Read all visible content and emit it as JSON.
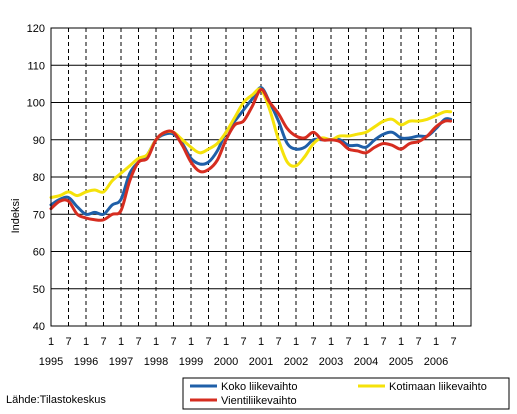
{
  "chart_data": {
    "type": "line",
    "ylabel": "Indeksi",
    "ylim": [
      40,
      120
    ],
    "yticks": [
      40,
      50,
      60,
      70,
      80,
      90,
      100,
      110,
      120
    ],
    "x_start": "1995-01",
    "x_end": "2006-12",
    "month_tick_labels": [
      "1",
      "7"
    ],
    "year_labels": [
      "1995",
      "1996",
      "1997",
      "1998",
      "1999",
      "2000",
      "2001",
      "2002",
      "2003",
      "2004",
      "2005",
      "2006"
    ],
    "grid": {
      "horizontal": "solid",
      "vertical": "dashed"
    },
    "legend_position": "bottom-right",
    "source_text": "Lähde:Tilastokeskus",
    "x_label": "",
    "series": [
      {
        "name": "Koko liikevaihto",
        "color": "#1f5fa8",
        "x": [
          "1995-01",
          "1995-04",
          "1995-07",
          "1995-10",
          "1996-01",
          "1996-04",
          "1996-07",
          "1996-10",
          "1997-01",
          "1997-04",
          "1997-07",
          "1997-10",
          "1998-01",
          "1998-04",
          "1998-07",
          "1998-10",
          "1999-01",
          "1999-04",
          "1999-07",
          "1999-10",
          "2000-01",
          "2000-04",
          "2000-07",
          "2000-10",
          "2001-01",
          "2001-04",
          "2001-07",
          "2001-10",
          "2002-01",
          "2002-04",
          "2002-07",
          "2002-10",
          "2003-01",
          "2003-04",
          "2003-07",
          "2003-10",
          "2004-01",
          "2004-04",
          "2004-07",
          "2004-10",
          "2005-01",
          "2005-04",
          "2005-07",
          "2005-10",
          "2006-01",
          "2006-04",
          "2006-06"
        ],
        "values": [
          72.5,
          74,
          74.5,
          72,
          70,
          70.5,
          70,
          72.5,
          74,
          81,
          84,
          86,
          90,
          91.5,
          91.5,
          89,
          85,
          83.5,
          84,
          87,
          92,
          95,
          98,
          101,
          104,
          100,
          95,
          89,
          87.5,
          88,
          90,
          90,
          90,
          90,
          88.5,
          88.5,
          88,
          90,
          91.5,
          92,
          90.5,
          90.5,
          91,
          91,
          93,
          95.5,
          95.5
        ]
      },
      {
        "name": "Kotimaan liikevaihto",
        "color": "#f5e20a",
        "x": [
          "1995-01",
          "1995-04",
          "1995-07",
          "1995-10",
          "1996-01",
          "1996-04",
          "1996-07",
          "1996-10",
          "1997-01",
          "1997-04",
          "1997-07",
          "1997-10",
          "1998-01",
          "1998-04",
          "1998-07",
          "1998-10",
          "1999-01",
          "1999-04",
          "1999-07",
          "1999-10",
          "2000-01",
          "2000-04",
          "2000-07",
          "2000-10",
          "2001-01",
          "2001-04",
          "2001-07",
          "2001-10",
          "2002-01",
          "2002-04",
          "2002-07",
          "2002-10",
          "2003-01",
          "2003-04",
          "2003-07",
          "2003-10",
          "2004-01",
          "2004-04",
          "2004-07",
          "2004-10",
          "2005-01",
          "2005-04",
          "2005-07",
          "2005-10",
          "2006-01",
          "2006-04",
          "2006-06"
        ],
        "values": [
          74.5,
          75,
          76,
          75,
          76,
          76.5,
          76,
          79,
          81,
          83,
          85,
          86,
          90,
          92,
          92,
          90,
          88,
          86.5,
          87.5,
          89,
          92,
          96,
          100,
          102,
          103.5,
          98,
          90,
          84,
          83,
          85.5,
          89,
          90.5,
          90,
          91,
          91,
          91.5,
          92,
          93.5,
          95,
          95.5,
          94,
          95,
          95,
          95.5,
          96.5,
          97.5,
          97.5
        ]
      },
      {
        "name": "Vientiliikevaihto",
        "color": "#d62d20",
        "x": [
          "1995-01",
          "1995-04",
          "1995-07",
          "1995-10",
          "1996-01",
          "1996-04",
          "1996-07",
          "1996-10",
          "1997-01",
          "1997-04",
          "1997-07",
          "1997-10",
          "1998-01",
          "1998-04",
          "1998-07",
          "1998-10",
          "1999-01",
          "1999-04",
          "1999-07",
          "1999-10",
          "2000-01",
          "2000-04",
          "2000-07",
          "2000-10",
          "2001-01",
          "2001-04",
          "2001-07",
          "2001-10",
          "2002-01",
          "2002-04",
          "2002-07",
          "2002-10",
          "2003-01",
          "2003-04",
          "2003-07",
          "2003-10",
          "2004-01",
          "2004-04",
          "2004-07",
          "2004-10",
          "2005-01",
          "2005-04",
          "2005-07",
          "2005-10",
          "2006-01",
          "2006-04",
          "2006-06"
        ],
        "values": [
          71.5,
          73.5,
          73.5,
          70,
          69,
          68.5,
          68.5,
          70,
          71,
          79,
          84,
          85,
          90,
          92,
          92,
          88.5,
          84,
          81.5,
          82,
          84.5,
          90,
          94,
          95,
          99,
          103.5,
          100,
          97,
          93,
          91,
          90.5,
          92,
          90,
          90,
          89.5,
          87.5,
          87,
          86.5,
          88,
          89,
          88.5,
          87.5,
          89,
          89.5,
          91,
          93.5,
          95,
          95
        ]
      }
    ]
  }
}
